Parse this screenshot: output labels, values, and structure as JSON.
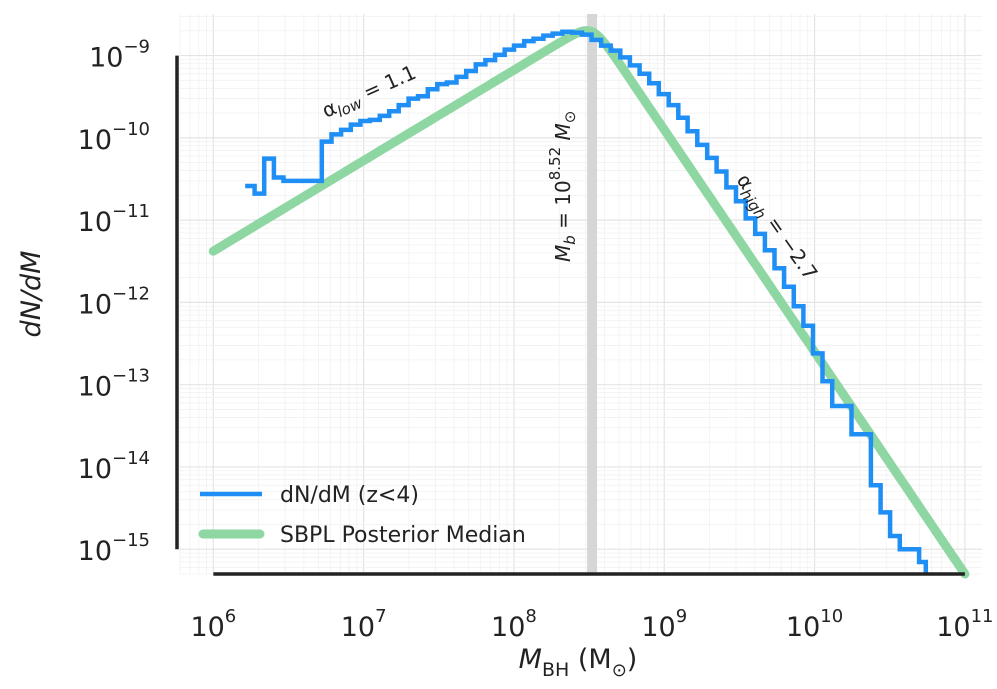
{
  "chart_data": {
    "type": "line",
    "xscale": "log",
    "yscale": "log",
    "xlim": [
      600000,
      130000000000
    ],
    "ylim": [
      5e-16,
      3.2e-09
    ],
    "grid": true,
    "legend_position": "bottom-left",
    "xlabel": {
      "main": "M",
      "sub": "BH",
      "unit_open": " (M",
      "unit_sub": "⊙",
      "unit_close": ")"
    },
    "ylabel": "dN/dM",
    "x_ticks": [
      {
        "value": 1000000,
        "base": "10",
        "exp": "6"
      },
      {
        "value": 10000000,
        "base": "10",
        "exp": "7"
      },
      {
        "value": 100000000,
        "base": "10",
        "exp": "8"
      },
      {
        "value": 1000000000,
        "base": "10",
        "exp": "9"
      },
      {
        "value": 10000000000,
        "base": "10",
        "exp": "10"
      },
      {
        "value": 100000000000,
        "base": "10",
        "exp": "11"
      }
    ],
    "y_ticks": [
      {
        "value": 1e-09,
        "base": "10",
        "exp": "−9"
      },
      {
        "value": 1e-10,
        "base": "10",
        "exp": "−10"
      },
      {
        "value": 1e-11,
        "base": "10",
        "exp": "−11"
      },
      {
        "value": 1e-12,
        "base": "10",
        "exp": "−12"
      },
      {
        "value": 1e-13,
        "base": "10",
        "exp": "−13"
      },
      {
        "value": 1e-14,
        "base": "10",
        "exp": "−14"
      },
      {
        "value": 1e-15,
        "base": "10",
        "exp": "−15"
      }
    ],
    "break_mass": 331000000,
    "series": [
      {
        "name": "dN/dM (z<4)",
        "style": "step",
        "color": "#1f8ff5",
        "points": [
          [
            1630000,
            2.6e-11
          ],
          [
            1880000,
            2.1e-11
          ],
          [
            2180000,
            5.6e-11
          ],
          [
            2530000,
            3.3e-11
          ],
          [
            2930000,
            3e-11
          ],
          [
            3390000,
            3e-11
          ],
          [
            3930000,
            3e-11
          ],
          [
            4550000,
            3e-11
          ],
          [
            5270000,
            9e-11
          ],
          [
            6110000,
            1.1e-10
          ],
          [
            7080000,
            1.25e-10
          ],
          [
            8210000,
            1.45e-10
          ],
          [
            9510000,
            1.6e-10
          ],
          [
            11000000,
            1.65e-10
          ],
          [
            12800000,
            1.85e-10
          ],
          [
            14800000,
            2.1e-10
          ],
          [
            17100000,
            2.5e-10
          ],
          [
            19900000,
            3e-10
          ],
          [
            23000000,
            3.2e-10
          ],
          [
            26700000,
            3.9e-10
          ],
          [
            30900000,
            4.5e-10
          ],
          [
            35800000,
            4.7e-10
          ],
          [
            41500000,
            5.5e-10
          ],
          [
            48100000,
            6.5e-10
          ],
          [
            55700000,
            7.8e-10
          ],
          [
            64600000,
            8.8e-10
          ],
          [
            74900000,
            1.02e-09
          ],
          [
            86800000,
            1.18e-09
          ],
          [
            100000000,
            1.32e-09
          ],
          [
            117000000,
            1.5e-09
          ],
          [
            135000000,
            1.6e-09
          ],
          [
            157000000,
            1.75e-09
          ],
          [
            181000000,
            1.85e-09
          ],
          [
            210000000,
            1.95e-09
          ],
          [
            244000000,
            1.9e-09
          ],
          [
            283000000,
            1.8e-09
          ],
          [
            328000000,
            1.55e-09
          ],
          [
            380000000,
            1.32e-09
          ],
          [
            440000000,
            1.15e-09
          ],
          [
            510000000,
            9.5e-10
          ],
          [
            591000000,
            7.6e-10
          ],
          [
            685000000,
            6e-10
          ],
          [
            794000000,
            4.6e-10
          ],
          [
            920000000,
            3.4e-10
          ],
          [
            1070000000,
            2.5e-10
          ],
          [
            1240000000,
            1.75e-10
          ],
          [
            1430000000,
            1.2e-10
          ],
          [
            1660000000,
            8.2e-11
          ],
          [
            1930000000,
            5.7e-11
          ],
          [
            2230000000,
            3.9e-11
          ],
          [
            2590000000,
            2.5e-11
          ],
          [
            3000000000,
            1.7e-11
          ],
          [
            3480000000,
            1.05e-11
          ],
          [
            4030000000,
            6.8e-12
          ],
          [
            4670000000,
            4.3e-12
          ],
          [
            5410000000,
            2.6e-12
          ],
          [
            6270000000,
            1.55e-12
          ],
          [
            7270000000,
            9e-13
          ],
          [
            8430000000,
            5.2e-13
          ],
          [
            9770000000,
            2.4e-13
          ],
          [
            11300000000,
            1.1e-13
          ],
          [
            13100000000,
            5.5e-14
          ],
          [
            15200000000,
            5.5e-14
          ],
          [
            17600000000,
            2.5e-14
          ],
          [
            20400000000,
            2.5e-14
          ],
          [
            23700000000,
            6e-15
          ],
          [
            27500000000,
            2.8e-15
          ],
          [
            31800000000,
            1.45e-15
          ],
          [
            36900000000,
            1e-15
          ],
          [
            42800000000,
            1e-15
          ],
          [
            49600000000,
            7e-16
          ],
          [
            55000000000,
            5e-16
          ]
        ]
      },
      {
        "name": "SBPL Posterior Median",
        "style": "smooth",
        "color": "#8ed6a2",
        "model": {
          "norm_at_break": 1.95e-09,
          "alpha_low": 1.1,
          "alpha_high": -2.7,
          "smoothness": 0.35,
          "x_range": [
            1000000,
            100000000000
          ]
        }
      }
    ],
    "annotations": {
      "alpha_low": {
        "symbol": "α",
        "sub": "low",
        "text": " = 1.1"
      },
      "alpha_high": {
        "symbol": "α",
        "sub": "high",
        "text": " = −2.7"
      },
      "break_label": {
        "prefix": "M",
        "sub": "b",
        "eq": " = 10",
        "exp": "8.52",
        "unit": " M",
        "unit_sub": "⊙"
      }
    }
  }
}
